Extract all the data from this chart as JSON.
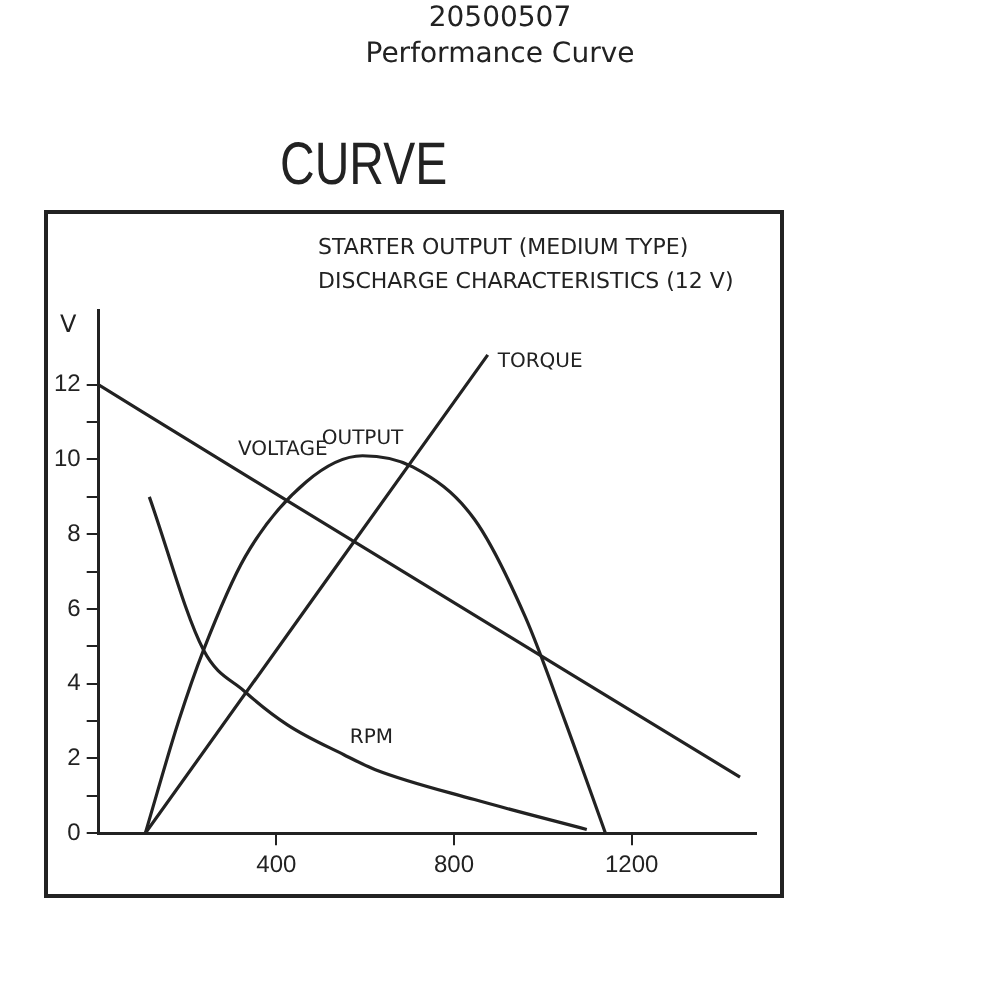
{
  "chart_data": {
    "type": "line",
    "title": "20500507",
    "subtitle": "Performance Curve",
    "ylabel": "V",
    "annotations": [
      "CURVE",
      "STARTER OUTPUT (MEDIUM TYPE)",
      "DISCHARGE CHARACTERISTICS (12 V)"
    ],
    "xlim": [
      0,
      1480
    ],
    "xticks": [
      400,
      800,
      1200
    ],
    "ylim": [
      0,
      14
    ],
    "yticks": [
      0,
      {
        "value": 1,
        "label": null
      },
      2,
      {
        "value": 3,
        "label": null
      },
      4,
      {
        "value": 5,
        "label": null
      },
      6,
      {
        "value": 7,
        "label": null
      },
      8,
      {
        "value": 9,
        "label": null
      },
      10,
      {
        "value": 11,
        "label": null
      },
      12
    ],
    "grid": false,
    "legend": false,
    "marker": "none",
    "line_style": "solid",
    "series": [
      {
        "name": "VOLTAGE",
        "color": "#222222",
        "x": [
          0,
          300,
          1444
        ],
        "values": [
          12,
          9.8,
          1.5
        ]
      },
      {
        "name": "OUTPUT",
        "color": "#222222",
        "x": [
          105,
          180,
          236,
          330,
          467,
          594,
          707,
          846,
          960,
          1050,
          1141
        ],
        "values": [
          0,
          3,
          4.9,
          7.4,
          9.4,
          10.1,
          9.8,
          8.4,
          5.8,
          3,
          0
        ]
      },
      {
        "name": "TORQUE",
        "color": "#222222",
        "x": [
          105,
          876
        ],
        "values": [
          0,
          12.8
        ]
      },
      {
        "name": "RPM",
        "color": "#222222",
        "x": [
          114,
          236,
          328,
          425,
          552,
          623,
          846,
          1099
        ],
        "values": [
          9,
          4.9,
          3.8,
          2.9,
          2.1,
          1.7,
          0.9,
          0.1
        ]
      }
    ]
  }
}
